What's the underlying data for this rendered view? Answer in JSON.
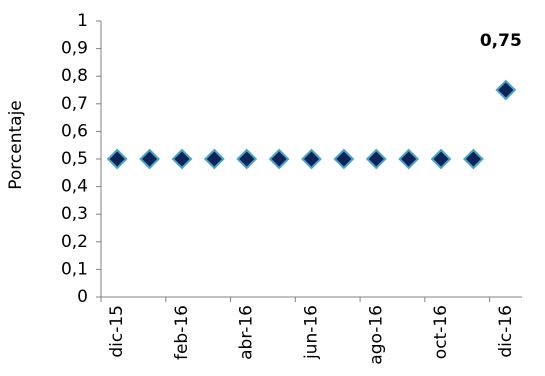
{
  "chart_data": {
    "type": "scatter",
    "ylabel": "Porcentaje",
    "ylim": [
      0,
      1
    ],
    "y_ticks": [
      "0",
      "0,1",
      "0,2",
      "0,3",
      "0,4",
      "0,5",
      "0,6",
      "0,7",
      "0,8",
      "0,9",
      "1"
    ],
    "x_tick_labels": [
      "dic-15",
      "feb-16",
      "abr-16",
      "jun-16",
      "ago-16",
      "oct-16",
      "dic-16"
    ],
    "x": [
      "dic-15",
      "ene-16",
      "feb-16",
      "mar-16",
      "abr-16",
      "may-16",
      "jun-16",
      "jul-16",
      "ago-16",
      "sep-16",
      "oct-16",
      "nov-16",
      "dic-16"
    ],
    "values": [
      0.5,
      0.5,
      0.5,
      0.5,
      0.5,
      0.5,
      0.5,
      0.5,
      0.5,
      0.5,
      0.5,
      0.5,
      0.75
    ],
    "annotations": [
      {
        "x": "dic-16",
        "text": "0,75"
      }
    ],
    "marker": "diamond",
    "marker_fill": "#0d2459",
    "marker_stroke": "#4ba3c7",
    "grid": false
  }
}
